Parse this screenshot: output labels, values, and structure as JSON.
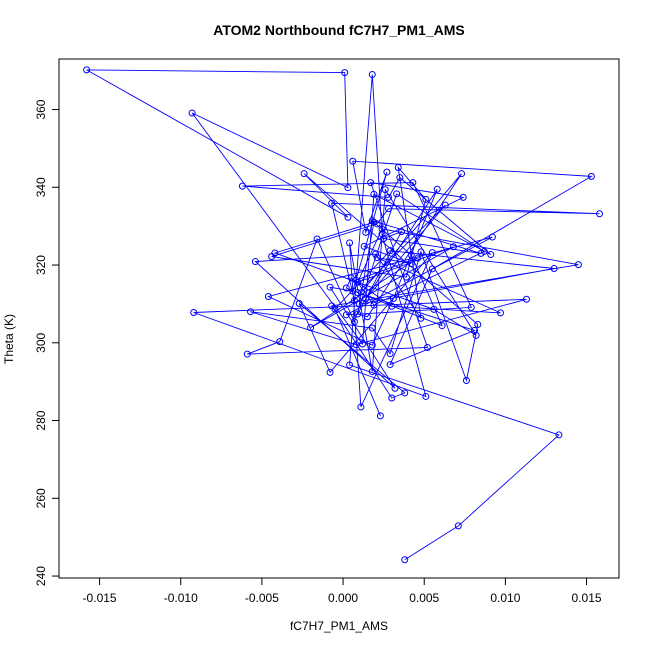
{
  "chart_data": {
    "type": "line",
    "title": "ATOM2 Northbound fC7H7_PM1_AMS",
    "xlabel": "fC7H7_PM1_AMS",
    "ylabel": "Theta (K)",
    "xlim": [
      -0.0175,
      0.017
    ],
    "ylim": [
      239.5,
      373
    ],
    "x_ticks": [
      -0.015,
      -0.01,
      -0.005,
      0.0,
      0.005,
      0.01,
      0.015
    ],
    "x_tick_labels": [
      "-0.015",
      "-0.010",
      "-0.005",
      "0.000",
      "0.005",
      "0.010",
      "0.015"
    ],
    "y_ticks": [
      240,
      260,
      280,
      300,
      320,
      340,
      360
    ],
    "y_tick_labels": [
      "240",
      "260",
      "280",
      "300",
      "320",
      "340",
      "360"
    ],
    "grid": false,
    "legend": "none",
    "series": [
      {
        "color": "#0000ff",
        "marker": "open-circle",
        "x": [
          0.0038,
          0.0071,
          0.0133,
          0.0004,
          0.0018,
          0.0024,
          0.0051,
          -0.0092,
          0.0113,
          0.0008,
          -0.0057,
          0.0018,
          0.0029,
          0.0048,
          0.0076,
          0.0083,
          -0.0024,
          0.0003,
          -0.0158,
          0.0001,
          0.0003,
          -0.0093,
          0.0012,
          0.0019,
          0.0091,
          0.0035,
          0.0028,
          -0.0062,
          0.0043,
          0.0079,
          0.0002,
          0.0092,
          -0.0046,
          0.0018,
          0.0031,
          0.0058,
          0.0014,
          0.0063,
          0.0009,
          0.0081,
          0.0029,
          0.0055,
          0.0153,
          0.0006,
          0.0014,
          0.0027,
          0.0006,
          -0.0008,
          0.0032,
          -0.0054,
          0.002,
          0.0048,
          0.0034,
          0.0051,
          0.0039,
          -0.0044,
          0.0021,
          0.0028,
          0.0158,
          -0.0007,
          0.0007,
          0.0073,
          0.0015,
          0.0009,
          0.0036,
          0.0025,
          0.0085,
          0.0018,
          0.0042,
          0.0061,
          0.0002,
          0.0005,
          0.003,
          0.0097,
          0.0021,
          0.0042,
          0.0013,
          0.0074,
          0.0017,
          0.0052,
          -0.0059,
          -0.0039,
          -0.0016,
          0.0007,
          0.0033,
          0.0087,
          0.0019,
          0.0008,
          0.0046,
          -0.002,
          0.0068,
          0.0009,
          0.0024,
          0.0145,
          -0.0007,
          0.003,
          0.0038,
          -0.0027,
          -0.0008,
          0.0055,
          0.0011,
          0.0004,
          0.0018,
          0.0026,
          0.0082,
          0.0056,
          -0.0042,
          0.0019,
          0.001,
          0.013,
          0.0029,
          -0.0005,
          0.0023
        ],
        "y": [
          244.2,
          252.9,
          276.3,
          294.3,
          369.0,
          328.0,
          286.2,
          307.8,
          311.2,
          299.5,
          308.0,
          303.8,
          297.2,
          323.4,
          290.3,
          304.7,
          343.5,
          332.3,
          370.2,
          369.5,
          339.9,
          359.1,
          299.7,
          338.2,
          322.7,
          342.5,
          337.4,
          340.3,
          341.2,
          309.1,
          307.2,
          327.2,
          311.9,
          299.4,
          311.4,
          339.5,
          311.3,
          335.4,
          312.9,
          303.2,
          294.4,
          319.0,
          342.8,
          346.7,
          328.4,
          343.9,
          313.3,
          314.3,
          288.3,
          320.9,
          322.8,
          306.3,
          345.1,
          336.9,
          316.9,
          322.2,
          330.6,
          334.5,
          333.2,
          335.9,
          310.9,
          343.5,
          306.7,
          307.4,
          328.6,
          326.8,
          323.0,
          331.4,
          322.6,
          304.4,
          314.1,
          316.7,
          309.4,
          307.7,
          321.9,
          320.4,
          324.8,
          337.4,
          341.2,
          298.8,
          297.1,
          300.3,
          326.7,
          305.4,
          338.3,
          323.5,
          309.7,
          316.1,
          321.8,
          303.9,
          324.7,
          315.6,
          329.3,
          320.1,
          309.5,
          285.8,
          287.1,
          310.1,
          292.4,
          323.2,
          283.5,
          325.7,
          292.6,
          339.4,
          301.9,
          308.6,
          323.1,
          331.0,
          309.9,
          319.1,
          323.7,
          308.7,
          281.2
        ]
      }
    ]
  }
}
